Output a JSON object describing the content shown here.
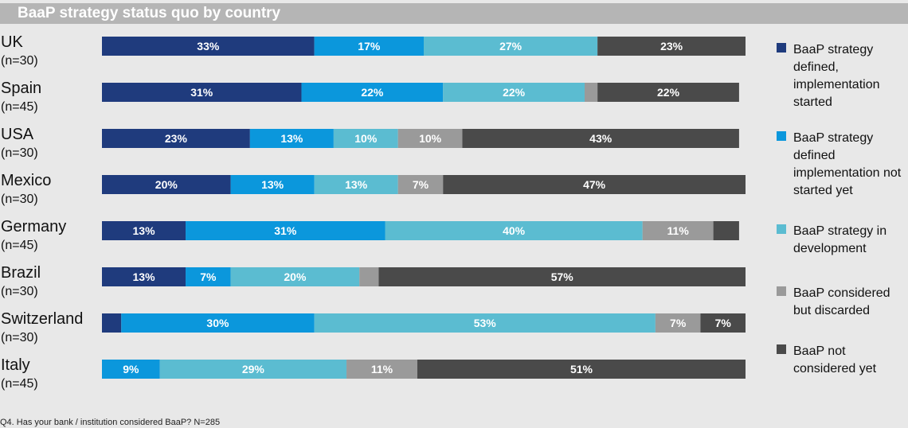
{
  "title": "BaaP strategy status quo by country",
  "footnote": "Q4. Has your bank / institution considered BaaP? N=285",
  "chart_data": {
    "type": "bar",
    "orientation": "horizontal",
    "stacked": true,
    "title": "BaaP strategy status quo by country",
    "categories": [
      "UK",
      "Spain",
      "USA",
      "Mexico",
      "Germany",
      "Brazil",
      "Switzerland",
      "Italy"
    ],
    "n_labels": [
      "(n=30)",
      "(n=45)",
      "(n=30)",
      "(n=30)",
      "(n=45)",
      "(n=30)",
      "(n=30)",
      "(n=45)"
    ],
    "series": [
      {
        "name": "BaaP strategy defined, implementation started",
        "color": "#1f3b7d",
        "values": [
          33,
          31,
          23,
          20,
          13,
          13,
          3,
          0
        ]
      },
      {
        "name": "BaaP strategy defined implementation not started yet",
        "color": "#0b97dc",
        "values": [
          17,
          22,
          13,
          13,
          31,
          7,
          30,
          9
        ]
      },
      {
        "name": "BaaP strategy in development",
        "color": "#5bbcd1",
        "values": [
          27,
          22,
          10,
          13,
          40,
          20,
          53,
          29
        ]
      },
      {
        "name": "BaaP considered but discarded",
        "color": "#9a9a9a",
        "values": [
          0,
          2,
          10,
          7,
          11,
          3,
          7,
          11
        ]
      },
      {
        "name": "BaaP not considered yet",
        "color": "#4a4a4a",
        "values": [
          23,
          22,
          43,
          47,
          4,
          57,
          7,
          51
        ]
      }
    ],
    "xlim": [
      0,
      100
    ],
    "legend_position": "right"
  },
  "legend": [
    {
      "text": "BaaP strategy defined, implementation started",
      "color": "#1f3b7d"
    },
    {
      "text": "BaaP strategy defined implementation not started yet",
      "color": "#0b97dc"
    },
    {
      "text": "BaaP strategy in development",
      "color": "#5bbcd1"
    },
    {
      "text": "BaaP considered but discarded",
      "color": "#9a9a9a"
    },
    {
      "text": "BaaP not considered yet",
      "color": "#4a4a4a"
    }
  ]
}
